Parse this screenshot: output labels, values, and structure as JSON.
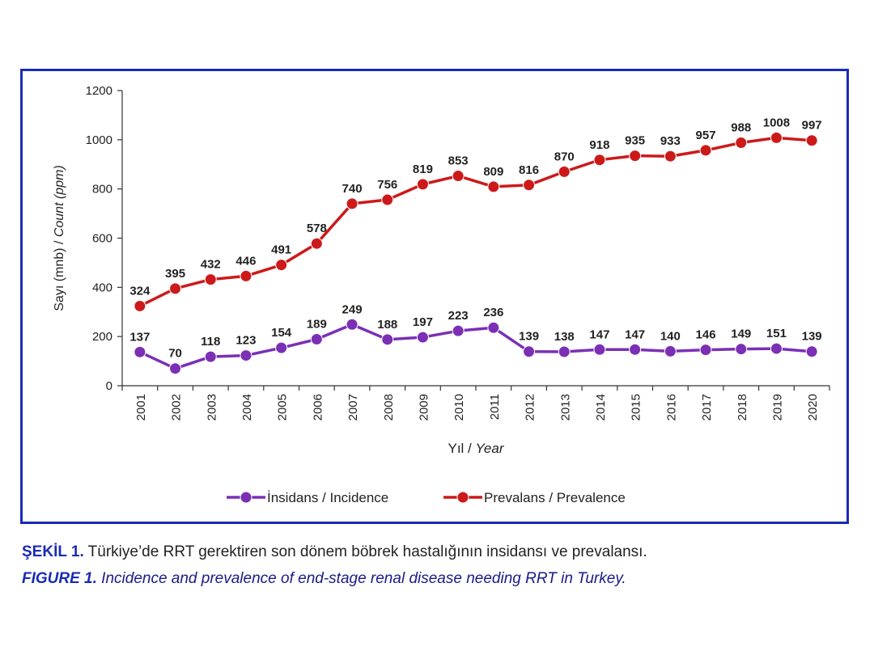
{
  "chart_data": {
    "type": "line",
    "categories": [
      "2001",
      "2002",
      "2003",
      "2004",
      "2005",
      "2006",
      "2007",
      "2008",
      "2009",
      "2010",
      "2011",
      "2012",
      "2013",
      "2014",
      "2015",
      "2016",
      "2017",
      "2018",
      "2019",
      "2020"
    ],
    "series": [
      {
        "name": "İnsidans / Incidence",
        "color": "#7b2fb5",
        "values": [
          137,
          70,
          118,
          123,
          154,
          189,
          249,
          188,
          197,
          223,
          236,
          139,
          138,
          147,
          147,
          140,
          146,
          149,
          151,
          139
        ]
      },
      {
        "name": "Prevalans / Prevalence",
        "color": "#cc1a1a",
        "values": [
          324,
          395,
          432,
          446,
          491,
          578,
          740,
          756,
          819,
          853,
          809,
          816,
          870,
          918,
          935,
          933,
          957,
          988,
          1008,
          997
        ]
      }
    ],
    "ylabel_plain": "Sayı (mnb) / ",
    "ylabel_italic": "Count (ppm)",
    "xlabel_plain": "Yıl / ",
    "xlabel_italic": "Year",
    "ylim": [
      0,
      1200
    ],
    "yticks": [
      0,
      200,
      400,
      600,
      800,
      1000,
      1200
    ],
    "grid": false,
    "legend_position": "bottom"
  },
  "caption": {
    "tr_lead": "ŞEKİL 1.",
    "tr_text": " Türkiye’de RRT gerektiren son dönem böbrek hastalığının insidansı ve prevalansı.",
    "en_lead": "FIGURE 1.",
    "en_text": " Incidence and prevalence of end-stage renal disease needing RRT in Turkey."
  }
}
